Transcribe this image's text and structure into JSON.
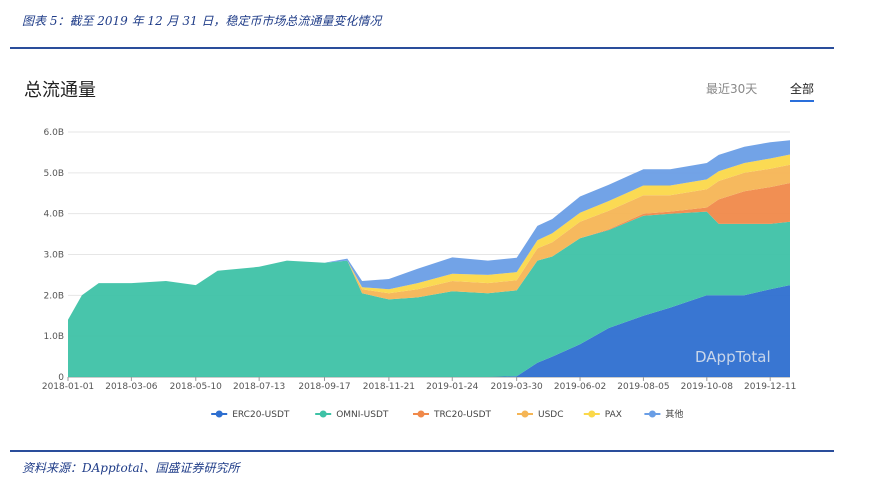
{
  "figure_title": "图表 5：截至 2019 年 12 月 31 日，稳定币市场总流通量变化情况",
  "source": "资料来源：DApptotal、国盛证券研究所",
  "panel": {
    "title": "总流通量",
    "tabs": [
      "最近30天",
      "全部"
    ],
    "active_tab": "全部"
  },
  "watermark": "DAppTotal",
  "colors": {
    "ERC20-USDT": "#2e6fd0",
    "OMNI-USDT": "#3ec2a6",
    "TRC20-USDT": "#f0894a",
    "USDC": "#f5b555",
    "PAX": "#fbd84a",
    "其他": "#6a9ee6",
    "accent_rule": "#2a4d9b"
  },
  "chart_data": {
    "type": "area",
    "stacked": true,
    "title": "",
    "xlabel": "",
    "ylabel": "",
    "ylim": [
      0,
      6.0
    ],
    "yticks": [
      "0",
      "1.0B",
      "2.0B",
      "3.0B",
      "4.0B",
      "5.0B",
      "6.0B"
    ],
    "xticks": [
      "2018-01-01",
      "2018-03-06",
      "2018-05-10",
      "2018-07-13",
      "2018-09-17",
      "2018-11-21",
      "2019-01-24",
      "2019-03-30",
      "2019-06-02",
      "2019-08-05",
      "2019-10-08",
      "2019-12-11"
    ],
    "x": [
      "2018-01-01",
      "2018-01-15",
      "2018-02-01",
      "2018-03-06",
      "2018-04-10",
      "2018-05-10",
      "2018-06-01",
      "2018-07-13",
      "2018-08-10",
      "2018-09-17",
      "2018-10-10",
      "2018-10-25",
      "2018-11-21",
      "2018-12-20",
      "2019-01-24",
      "2019-03-01",
      "2019-03-30",
      "2019-04-20",
      "2019-05-05",
      "2019-06-02",
      "2019-07-01",
      "2019-08-05",
      "2019-09-01",
      "2019-10-08",
      "2019-10-20",
      "2019-11-15",
      "2019-12-11",
      "2019-12-31"
    ],
    "series": [
      {
        "name": "ERC20-USDT",
        "values": [
          0.0,
          0.0,
          0.0,
          0.0,
          0.0,
          0.0,
          0.0,
          0.0,
          0.0,
          0.0,
          0.0,
          0.0,
          0.0,
          0.0,
          0.0,
          0.0,
          0.02,
          0.35,
          0.5,
          0.8,
          1.2,
          1.5,
          1.7,
          2.0,
          2.0,
          2.0,
          2.15,
          2.25
        ]
      },
      {
        "name": "OMNI-USDT",
        "values": [
          1.4,
          2.0,
          2.3,
          2.3,
          2.35,
          2.25,
          2.6,
          2.7,
          2.85,
          2.8,
          2.85,
          2.05,
          1.9,
          1.95,
          2.1,
          2.05,
          2.1,
          2.5,
          2.45,
          2.6,
          2.4,
          2.45,
          2.3,
          2.05,
          1.75,
          1.75,
          1.6,
          1.55
        ]
      },
      {
        "name": "TRC20-USDT",
        "values": [
          0.0,
          0.0,
          0.0,
          0.0,
          0.0,
          0.0,
          0.0,
          0.0,
          0.0,
          0.0,
          0.0,
          0.0,
          0.0,
          0.0,
          0.0,
          0.0,
          0.0,
          0.0,
          0.0,
          0.0,
          0.02,
          0.05,
          0.05,
          0.1,
          0.6,
          0.8,
          0.9,
          0.95
        ]
      },
      {
        "name": "USDC",
        "values": [
          0.0,
          0.0,
          0.0,
          0.0,
          0.0,
          0.0,
          0.0,
          0.0,
          0.0,
          0.0,
          0.0,
          0.1,
          0.15,
          0.2,
          0.25,
          0.25,
          0.25,
          0.3,
          0.35,
          0.4,
          0.45,
          0.45,
          0.4,
          0.45,
          0.45,
          0.45,
          0.45,
          0.45
        ]
      },
      {
        "name": "PAX",
        "values": [
          0.0,
          0.0,
          0.0,
          0.0,
          0.0,
          0.0,
          0.0,
          0.0,
          0.0,
          0.0,
          0.0,
          0.05,
          0.1,
          0.15,
          0.18,
          0.2,
          0.2,
          0.2,
          0.22,
          0.22,
          0.24,
          0.24,
          0.24,
          0.24,
          0.24,
          0.24,
          0.25,
          0.25
        ]
      },
      {
        "name": "其他",
        "values": [
          0.0,
          0.0,
          0.0,
          0.0,
          0.0,
          0.0,
          0.0,
          0.0,
          0.0,
          0.0,
          0.05,
          0.15,
          0.25,
          0.35,
          0.4,
          0.35,
          0.35,
          0.35,
          0.35,
          0.4,
          0.4,
          0.4,
          0.4,
          0.4,
          0.4,
          0.4,
          0.4,
          0.35
        ]
      }
    ],
    "grid": true,
    "legend": "bottom-center"
  }
}
